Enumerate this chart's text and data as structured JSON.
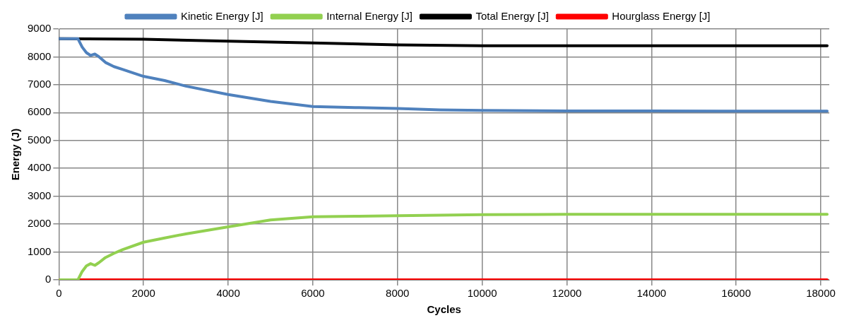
{
  "chart_data": {
    "type": "line",
    "xlabel": "Cycles",
    "ylabel": "Energy (J)",
    "xlim": [
      0,
      18200
    ],
    "xticks": [
      0,
      2000,
      4000,
      6000,
      8000,
      10000,
      12000,
      14000,
      16000,
      18000
    ],
    "ylim": [
      0,
      9000
    ],
    "yticks": [
      0,
      1000,
      2000,
      3000,
      4000,
      5000,
      6000,
      7000,
      8000,
      9000
    ],
    "grid": true,
    "legend": "top",
    "marker": "none",
    "line_style": "solid",
    "series": [
      {
        "name": "Kinetic Energy [J]",
        "color": "#4f81bd",
        "x": [
          0,
          450,
          550,
          650,
          750,
          850,
          950,
          1100,
          1300,
          1500,
          2000,
          2500,
          3000,
          4000,
          5000,
          6000,
          7000,
          8000,
          9000,
          10000,
          12000,
          14000,
          16000,
          18150
        ],
        "values": [
          8650,
          8650,
          8350,
          8150,
          8050,
          8100,
          8000,
          7800,
          7650,
          7550,
          7300,
          7150,
          6950,
          6650,
          6400,
          6220,
          6180,
          6150,
          6100,
          6080,
          6060,
          6060,
          6050,
          6050
        ]
      },
      {
        "name": "Internal Energy [J]",
        "color": "#92d050",
        "x": [
          0,
          450,
          550,
          650,
          750,
          850,
          950,
          1100,
          1300,
          1500,
          2000,
          2500,
          3000,
          4000,
          5000,
          6000,
          7000,
          8000,
          9000,
          10000,
          12000,
          14000,
          16000,
          18150
        ],
        "values": [
          0,
          0,
          300,
          500,
          580,
          520,
          620,
          800,
          950,
          1080,
          1350,
          1500,
          1650,
          1900,
          2150,
          2260,
          2280,
          2300,
          2320,
          2340,
          2350,
          2350,
          2350,
          2350
        ]
      },
      {
        "name": "Total Energy [J]",
        "color": "#000000",
        "x": [
          0,
          2000,
          4000,
          6000,
          8000,
          10000,
          12000,
          14000,
          16000,
          18150
        ],
        "values": [
          8650,
          8630,
          8560,
          8500,
          8430,
          8400,
          8400,
          8400,
          8400,
          8400
        ]
      },
      {
        "name": "Hourglass Energy [J]",
        "color": "#ff0000",
        "x": [
          0,
          18150
        ],
        "values": [
          0,
          0
        ]
      }
    ]
  }
}
